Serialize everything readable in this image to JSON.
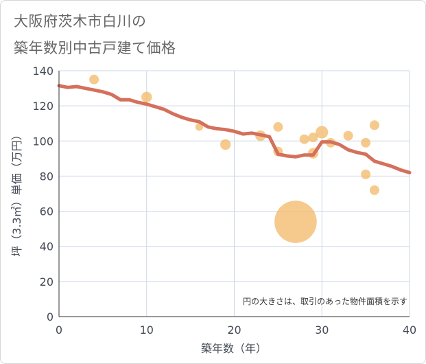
{
  "title_lines": [
    "大阪府茨木市白川の",
    "築年数別中古戸建て価格"
  ],
  "note": "円の大きさは、取引のあった物件面積を示す",
  "colors": {
    "bubble": "#f2b865",
    "line": "#d4705b",
    "grid": "#cdd7e6",
    "axis": "#333333",
    "text": "#444a55"
  },
  "chart_data": {
    "type": "scatter",
    "title": "大阪府茨木市白川の築年数別中古戸建て価格",
    "xlabel": "築年数（年）",
    "ylabel": "坪（3.3㎡）単価（万円）",
    "xlim": [
      0,
      40
    ],
    "ylim": [
      0,
      140
    ],
    "xticks": [
      0,
      10,
      20,
      30,
      40
    ],
    "yticks": [
      0,
      20,
      40,
      60,
      80,
      100,
      120,
      140
    ],
    "grid": true,
    "series": [
      {
        "kind": "bubble",
        "points": [
          {
            "x": 4,
            "y": 135,
            "size": 1.0
          },
          {
            "x": 10,
            "y": 125,
            "size": 1.1
          },
          {
            "x": 16,
            "y": 108,
            "size": 0.8
          },
          {
            "x": 19,
            "y": 98,
            "size": 1.1
          },
          {
            "x": 23,
            "y": 103,
            "size": 1.1
          },
          {
            "x": 25,
            "y": 108,
            "size": 1.0
          },
          {
            "x": 25,
            "y": 94,
            "size": 1.0
          },
          {
            "x": 27,
            "y": 54,
            "size": 4.4
          },
          {
            "x": 28,
            "y": 101,
            "size": 1.0
          },
          {
            "x": 29,
            "y": 102,
            "size": 1.0
          },
          {
            "x": 29,
            "y": 93,
            "size": 1.1
          },
          {
            "x": 30,
            "y": 105,
            "size": 1.3
          },
          {
            "x": 31,
            "y": 99,
            "size": 1.0
          },
          {
            "x": 33,
            "y": 103,
            "size": 1.0
          },
          {
            "x": 35,
            "y": 99,
            "size": 1.0
          },
          {
            "x": 35,
            "y": 81,
            "size": 1.0
          },
          {
            "x": 36,
            "y": 109,
            "size": 1.0
          },
          {
            "x": 36,
            "y": 72,
            "size": 1.0
          }
        ]
      },
      {
        "kind": "line",
        "x": [
          0,
          1,
          2,
          3,
          4,
          5,
          6,
          7,
          8,
          9,
          10,
          11,
          12,
          13,
          14,
          15,
          16,
          17,
          18,
          19,
          20,
          21,
          22,
          23,
          24,
          25,
          26,
          27,
          28,
          29,
          30,
          31,
          32,
          33,
          34,
          35,
          36,
          37,
          38,
          39,
          40
        ],
        "y": [
          131.5,
          130.5,
          131,
          130,
          129,
          128,
          126.5,
          123.5,
          123.5,
          122,
          121,
          119.5,
          118,
          115.5,
          113.5,
          112,
          111,
          108,
          107,
          106.5,
          105.5,
          104,
          104.5,
          103.5,
          102.5,
          92.5,
          91.5,
          91,
          92,
          92,
          99.5,
          99.5,
          98,
          95,
          93.5,
          92.5,
          88.5,
          87,
          85.5,
          83.5,
          82
        ]
      }
    ]
  }
}
